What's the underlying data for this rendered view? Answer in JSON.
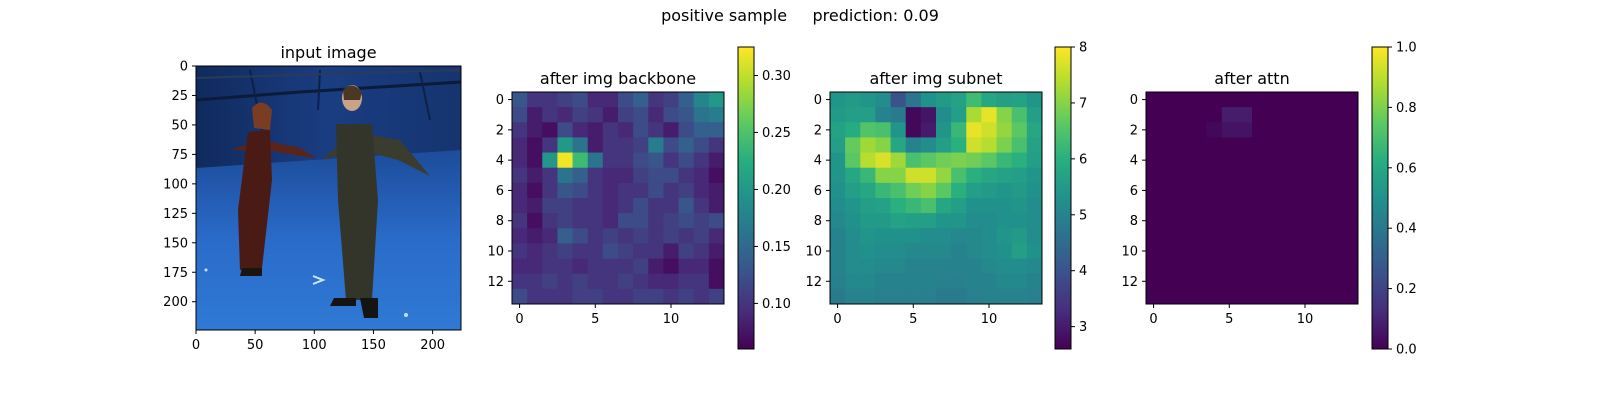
{
  "figure": {
    "suptitle": "positive sample     prediction: 0.09"
  },
  "chart_data": [
    {
      "type": "image",
      "title": "input image",
      "content": "photo of two people standing with arms outstretched in a blue motion-capture studio",
      "palette": {
        "floor": "#2a6bc9",
        "wall": "#15346f",
        "figure_dark": "#2b2b24",
        "dress": "#4a1a14"
      },
      "xlim": [
        0,
        224
      ],
      "ylim": [
        224,
        0
      ],
      "xticks": [
        0,
        50,
        100,
        150,
        200
      ],
      "yticks": [
        0,
        25,
        50,
        75,
        100,
        125,
        150,
        175,
        200
      ]
    },
    {
      "type": "heatmap",
      "title": "after img backbone",
      "colormap": "viridis",
      "vmin": 0.06,
      "vmax": 0.325,
      "xticks": [
        0,
        5,
        10
      ],
      "yticks": [
        0,
        2,
        4,
        6,
        8,
        10,
        12
      ],
      "colorbar_ticks": [
        0.1,
        0.15,
        0.2,
        0.25,
        0.3
      ],
      "colorbar_tick_labels": [
        "0.10",
        "0.15",
        "0.20",
        "0.25",
        "0.30"
      ],
      "values": [
        [
          0.13,
          0.1,
          0.1,
          0.11,
          0.12,
          0.09,
          0.09,
          0.12,
          0.14,
          0.1,
          0.11,
          0.14,
          0.18,
          0.2
        ],
        [
          0.12,
          0.08,
          0.1,
          0.09,
          0.11,
          0.1,
          0.08,
          0.11,
          0.12,
          0.09,
          0.12,
          0.13,
          0.16,
          0.17
        ],
        [
          0.1,
          0.08,
          0.07,
          0.12,
          0.09,
          0.08,
          0.1,
          0.09,
          0.12,
          0.1,
          0.08,
          0.12,
          0.14,
          0.14
        ],
        [
          0.09,
          0.07,
          0.1,
          0.2,
          0.16,
          0.08,
          0.1,
          0.1,
          0.11,
          0.17,
          0.12,
          0.14,
          0.12,
          0.1
        ],
        [
          0.09,
          0.07,
          0.2,
          0.32,
          0.24,
          0.16,
          0.1,
          0.1,
          0.12,
          0.13,
          0.1,
          0.12,
          0.1,
          0.08
        ],
        [
          0.1,
          0.08,
          0.1,
          0.16,
          0.14,
          0.1,
          0.09,
          0.09,
          0.11,
          0.12,
          0.12,
          0.1,
          0.09,
          0.07
        ],
        [
          0.09,
          0.07,
          0.1,
          0.13,
          0.12,
          0.1,
          0.09,
          0.1,
          0.1,
          0.12,
          0.1,
          0.11,
          0.09,
          0.08
        ],
        [
          0.09,
          0.08,
          0.11,
          0.11,
          0.1,
          0.1,
          0.09,
          0.1,
          0.12,
          0.1,
          0.1,
          0.13,
          0.1,
          0.08
        ],
        [
          0.1,
          0.07,
          0.1,
          0.11,
          0.1,
          0.1,
          0.09,
          0.12,
          0.12,
          0.1,
          0.11,
          0.12,
          0.11,
          0.12
        ],
        [
          0.09,
          0.08,
          0.09,
          0.14,
          0.12,
          0.1,
          0.11,
          0.1,
          0.11,
          0.1,
          0.11,
          0.1,
          0.11,
          0.09
        ],
        [
          0.1,
          0.09,
          0.1,
          0.11,
          0.1,
          0.1,
          0.12,
          0.11,
          0.1,
          0.1,
          0.08,
          0.11,
          0.1,
          0.08
        ],
        [
          0.09,
          0.09,
          0.1,
          0.1,
          0.09,
          0.1,
          0.1,
          0.1,
          0.11,
          0.08,
          0.07,
          0.09,
          0.09,
          0.07
        ],
        [
          0.1,
          0.1,
          0.11,
          0.1,
          0.11,
          0.1,
          0.1,
          0.11,
          0.1,
          0.09,
          0.09,
          0.1,
          0.1,
          0.07
        ],
        [
          0.12,
          0.1,
          0.1,
          0.1,
          0.11,
          0.11,
          0.1,
          0.1,
          0.11,
          0.11,
          0.1,
          0.11,
          0.1,
          0.11
        ]
      ]
    },
    {
      "type": "heatmap",
      "title": "after img subnet",
      "colormap": "viridis",
      "vmin": 2.6,
      "vmax": 8.0,
      "xticks": [
        0,
        5,
        10
      ],
      "yticks": [
        0,
        2,
        4,
        6,
        8,
        10,
        12
      ],
      "colorbar_ticks": [
        3,
        4,
        5,
        6,
        7,
        8
      ],
      "colorbar_tick_labels": [
        "3",
        "4",
        "5",
        "6",
        "7",
        "8"
      ],
      "values": [
        [
          5.4,
          5.5,
          5.4,
          5.2,
          4.0,
          4.7,
          5.3,
          5.5,
          5.7,
          6.3,
          5.8,
          5.6,
          5.7,
          5.4
        ],
        [
          5.5,
          5.6,
          5.6,
          5.0,
          4.8,
          2.7,
          2.9,
          5.2,
          5.6,
          7.3,
          7.8,
          7.0,
          6.4,
          5.6
        ],
        [
          5.7,
          5.9,
          6.5,
          6.4,
          5.4,
          2.7,
          3.0,
          5.4,
          6.2,
          7.8,
          7.6,
          7.1,
          6.6,
          5.8
        ],
        [
          5.6,
          6.7,
          7.2,
          7.0,
          5.8,
          5.0,
          5.2,
          5.6,
          6.0,
          7.6,
          7.4,
          6.9,
          6.4,
          5.7
        ],
        [
          5.4,
          6.6,
          7.4,
          7.7,
          7.2,
          6.4,
          6.6,
          6.8,
          6.9,
          6.8,
          6.6,
          6.2,
          6.0,
          5.6
        ],
        [
          5.4,
          5.8,
          6.2,
          7.0,
          7.0,
          7.6,
          7.6,
          7.1,
          6.4,
          6.0,
          5.8,
          5.7,
          5.6,
          5.4
        ],
        [
          5.3,
          5.6,
          5.8,
          6.2,
          6.4,
          6.8,
          7.0,
          6.6,
          6.0,
          5.6,
          5.5,
          5.4,
          5.5,
          5.3
        ],
        [
          5.2,
          5.4,
          5.6,
          5.7,
          6.0,
          6.2,
          6.4,
          5.8,
          5.6,
          5.3,
          5.3,
          5.3,
          5.4,
          5.2
        ],
        [
          5.1,
          5.3,
          5.5,
          5.5,
          5.7,
          5.6,
          5.6,
          5.4,
          5.4,
          5.2,
          5.2,
          5.3,
          5.3,
          5.2
        ],
        [
          5.0,
          5.2,
          5.4,
          5.3,
          5.3,
          5.3,
          5.2,
          5.2,
          5.1,
          5.1,
          5.2,
          5.4,
          5.5,
          5.2
        ],
        [
          5.0,
          5.2,
          5.3,
          5.2,
          5.2,
          5.1,
          5.1,
          5.1,
          5.0,
          5.1,
          5.2,
          5.3,
          5.6,
          5.3
        ],
        [
          5.0,
          5.2,
          5.2,
          5.1,
          5.1,
          5.0,
          5.0,
          5.0,
          5.0,
          5.0,
          5.1,
          5.2,
          5.2,
          5.1
        ],
        [
          4.9,
          5.1,
          5.1,
          5.0,
          5.0,
          5.0,
          5.0,
          4.9,
          4.9,
          5.0,
          5.0,
          5.1,
          5.1,
          5.0
        ],
        [
          4.8,
          5.0,
          5.0,
          4.9,
          4.9,
          4.9,
          4.9,
          4.8,
          4.8,
          4.9,
          5.0,
          5.0,
          5.0,
          4.9
        ]
      ]
    },
    {
      "type": "heatmap",
      "title": "after attn",
      "colormap": "viridis",
      "vmin": 0.0,
      "vmax": 1.0,
      "xticks": [
        0,
        5,
        10
      ],
      "yticks": [
        0,
        2,
        4,
        6,
        8,
        10,
        12
      ],
      "colorbar_ticks": [
        0.0,
        0.2,
        0.4,
        0.6,
        0.8,
        1.0
      ],
      "colorbar_tick_labels": [
        "0.0",
        "0.2",
        "0.4",
        "0.6",
        "0.8",
        "1.0"
      ],
      "values": [
        [
          0,
          0,
          0,
          0,
          0,
          0,
          0,
          0,
          0,
          0,
          0,
          0,
          0,
          0
        ],
        [
          0,
          0,
          0,
          0,
          0,
          0.08,
          0.08,
          0,
          0,
          0,
          0,
          0,
          0,
          0
        ],
        [
          0,
          0,
          0,
          0,
          0.02,
          0.05,
          0.05,
          0,
          0,
          0,
          0,
          0,
          0,
          0
        ],
        [
          0,
          0,
          0,
          0,
          0,
          0,
          0,
          0,
          0,
          0,
          0,
          0,
          0,
          0
        ],
        [
          0,
          0,
          0,
          0,
          0,
          0,
          0,
          0,
          0,
          0,
          0,
          0,
          0,
          0
        ],
        [
          0,
          0,
          0,
          0,
          0,
          0,
          0,
          0,
          0,
          0,
          0,
          0,
          0,
          0
        ],
        [
          0,
          0,
          0,
          0,
          0,
          0,
          0,
          0,
          0,
          0,
          0,
          0,
          0,
          0
        ],
        [
          0,
          0,
          0,
          0,
          0,
          0,
          0,
          0,
          0,
          0,
          0,
          0,
          0,
          0
        ],
        [
          0,
          0,
          0,
          0,
          0,
          0,
          0,
          0,
          0,
          0,
          0,
          0,
          0,
          0
        ],
        [
          0,
          0,
          0,
          0,
          0,
          0,
          0,
          0,
          0,
          0,
          0,
          0,
          0,
          0
        ],
        [
          0,
          0,
          0,
          0,
          0,
          0,
          0,
          0,
          0,
          0,
          0,
          0,
          0,
          0
        ],
        [
          0,
          0,
          0,
          0,
          0,
          0,
          0,
          0,
          0,
          0,
          0,
          0,
          0,
          0
        ],
        [
          0,
          0,
          0,
          0,
          0,
          0,
          0,
          0,
          0,
          0,
          0,
          0,
          0,
          0
        ],
        [
          0,
          0,
          0,
          0,
          0,
          0,
          0,
          0,
          0,
          0,
          0,
          0,
          0,
          0
        ]
      ]
    }
  ]
}
